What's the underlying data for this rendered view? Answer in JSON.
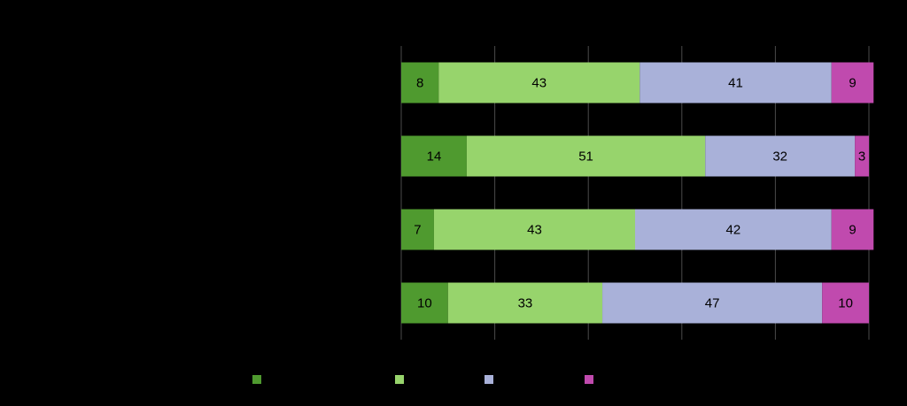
{
  "chart_data": {
    "type": "bar",
    "orientation": "horizontal",
    "stacked": true,
    "categories": [
      "",
      "",
      "",
      ""
    ],
    "series": [
      {
        "values": [
          8,
          14,
          7,
          10
        ],
        "color": "#4f9a2f"
      },
      {
        "values": [
          43,
          51,
          43,
          33
        ],
        "color": "#97d46c"
      },
      {
        "values": [
          41,
          32,
          42,
          47
        ],
        "color": "#a9b1d9"
      },
      {
        "values": [
          9,
          3,
          9,
          10
        ],
        "color": "#c04aae"
      }
    ],
    "xlim": [
      0,
      100
    ],
    "legend_position": "bottom",
    "background": "#000000"
  }
}
